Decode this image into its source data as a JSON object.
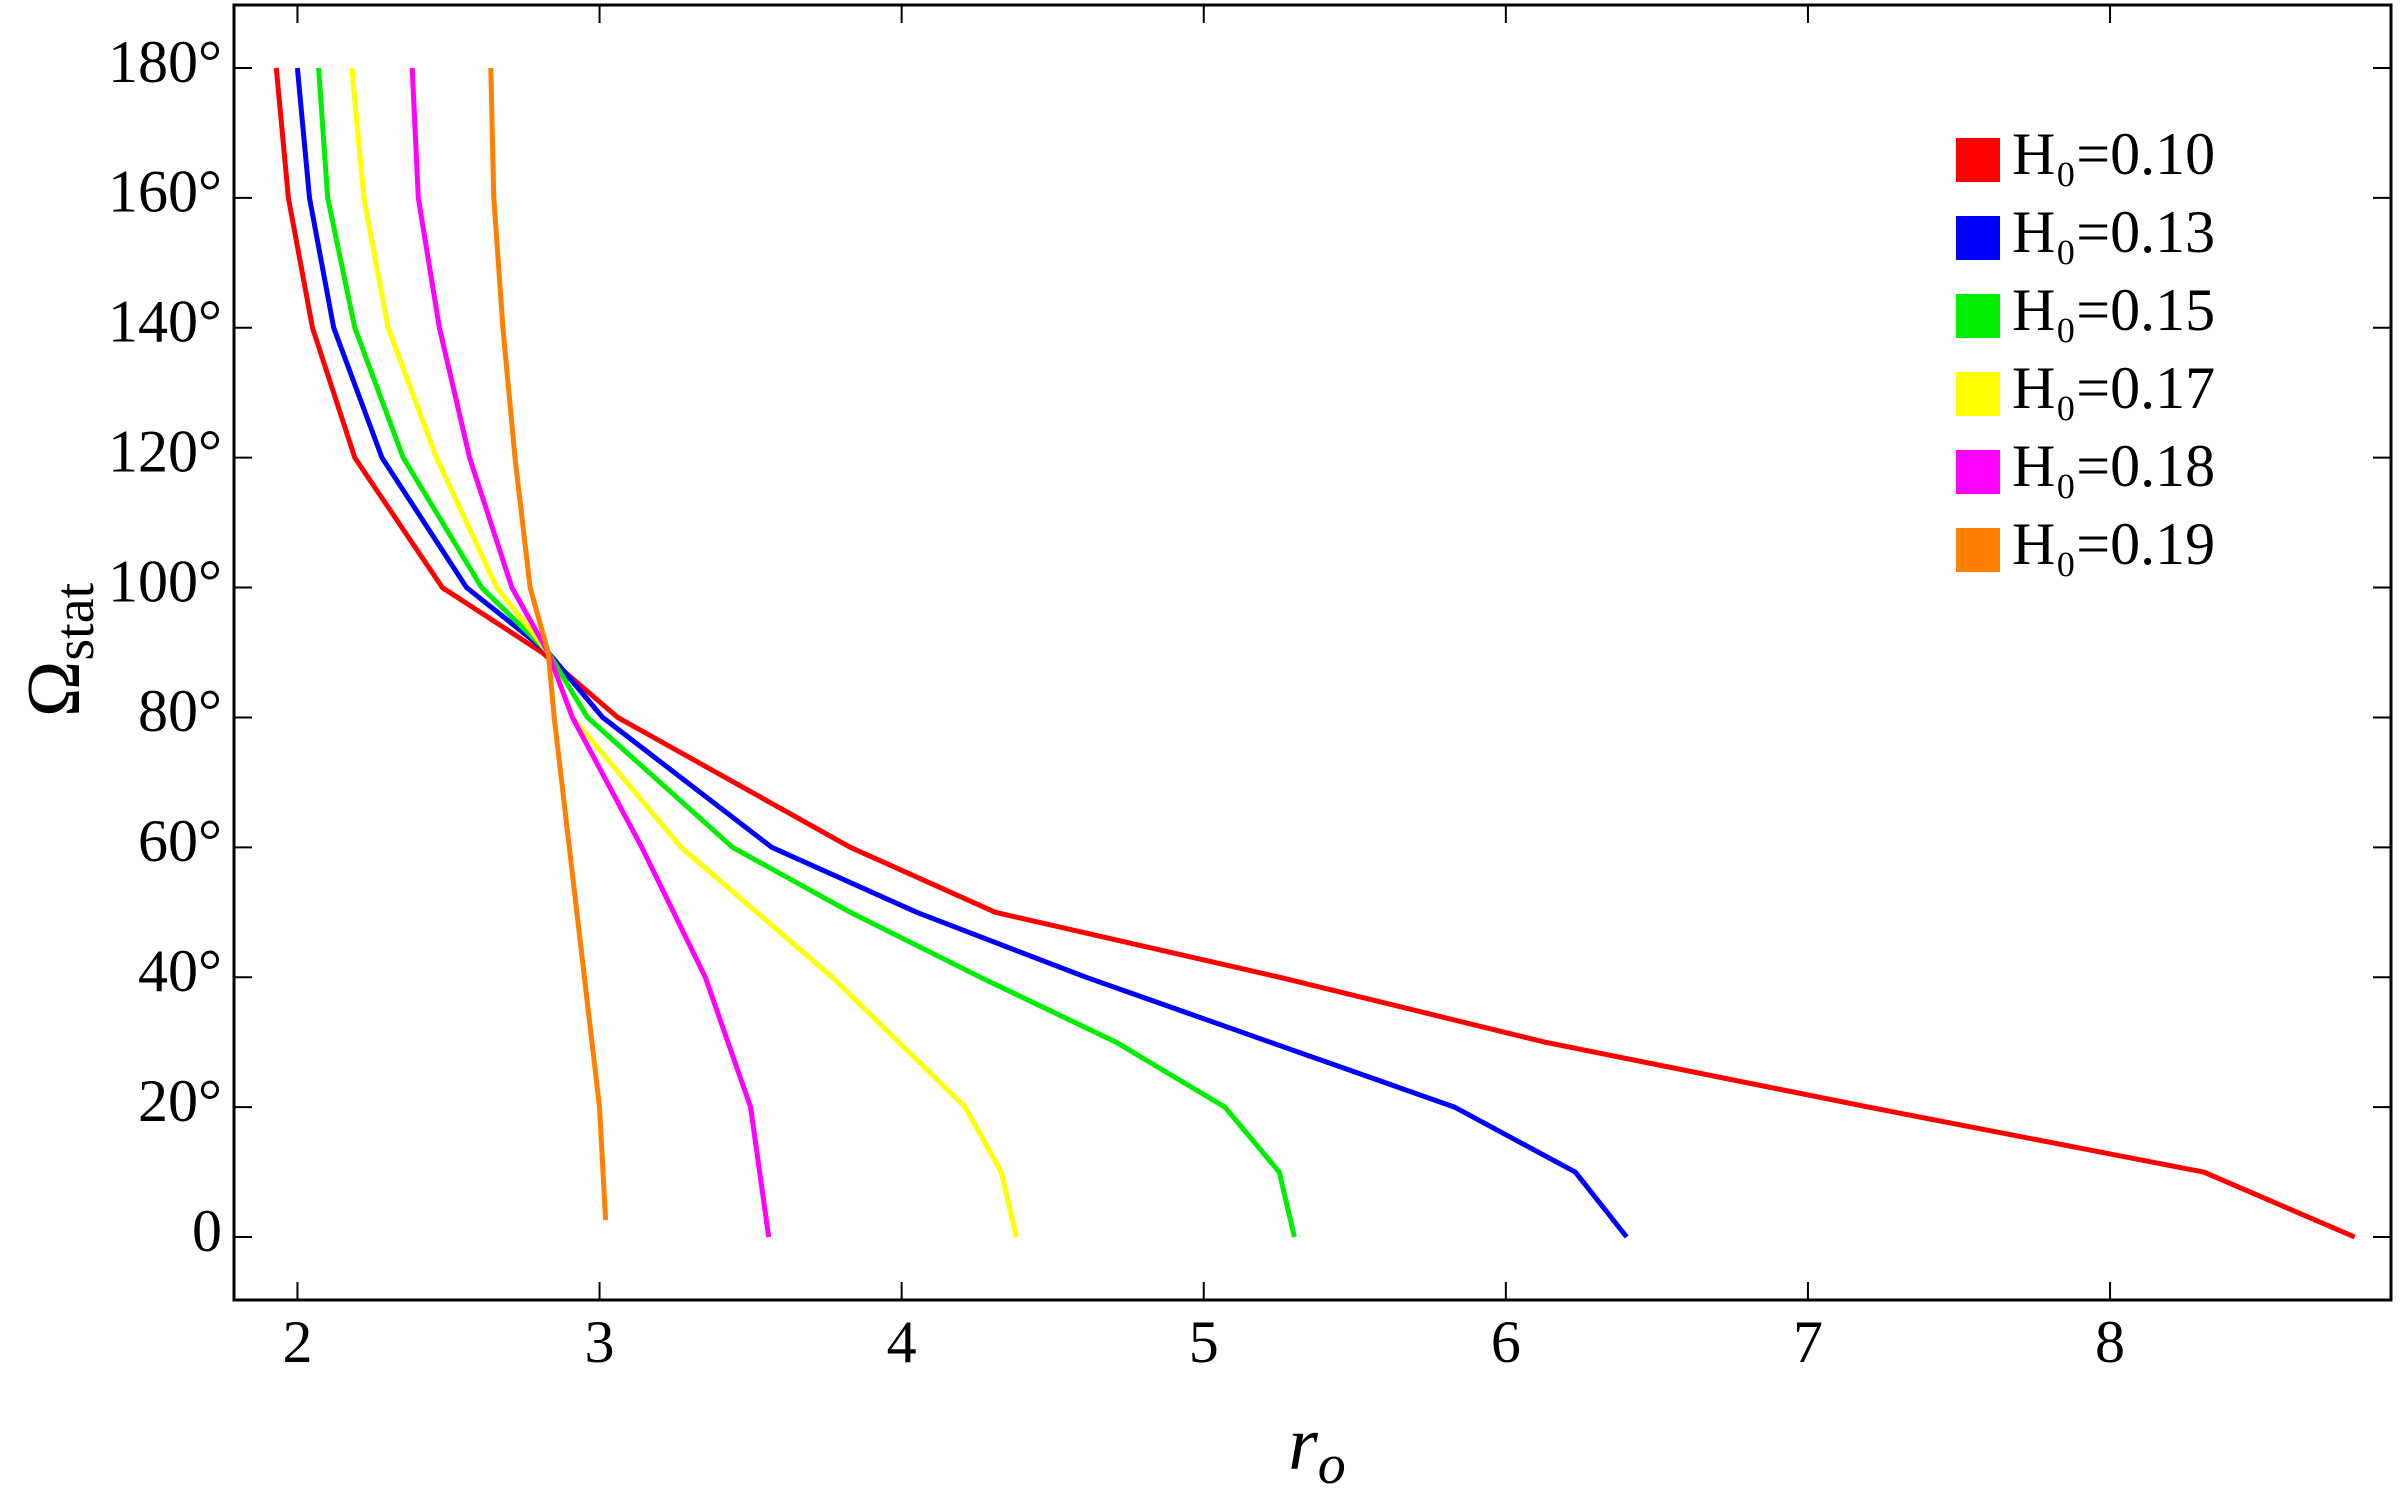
{
  "chart_data": {
    "type": "line",
    "x_label": {
      "base": "r",
      "sub": "o"
    },
    "y_label": {
      "base": "Ω",
      "sub": "stat"
    },
    "xlim": [
      1.79,
      8.93
    ],
    "ylim": [
      -9.7,
      189.7
    ],
    "xticks": [
      2,
      3,
      4,
      5,
      6,
      7,
      8
    ],
    "yticks": [
      0,
      {
        "value": 20,
        "label": "20°"
      },
      {
        "value": 40,
        "label": "40°"
      },
      {
        "value": 60,
        "label": "60°"
      },
      {
        "value": 80,
        "label": "80°"
      },
      {
        "value": 100,
        "label": "100°"
      },
      {
        "value": 120,
        "label": "120°"
      },
      {
        "value": 140,
        "label": "140°"
      },
      {
        "value": 160,
        "label": "160°"
      },
      {
        "value": 180,
        "label": "180°"
      }
    ],
    "legend": "upper right",
    "series": [
      {
        "name": "H₀=0.10",
        "color": "#ff0000",
        "x": [
          1.93,
          1.97,
          2.05,
          2.19,
          2.48,
          2.81,
          3.06,
          3.83,
          4.31,
          5.25,
          6.13,
          7.2,
          8.31,
          8.81
        ],
        "values": [
          180,
          160,
          140,
          120,
          100,
          90,
          80,
          60,
          50,
          40,
          30,
          20,
          10,
          0
        ]
      },
      {
        "name": "H₀=0.13",
        "color": "#0000ff",
        "x": [
          2.0,
          2.04,
          2.12,
          2.28,
          2.56,
          2.83,
          3.01,
          3.57,
          4.05,
          4.61,
          5.22,
          5.83,
          6.23,
          6.4
        ],
        "values": [
          180,
          160,
          140,
          120,
          100,
          90,
          80,
          60,
          50,
          40,
          30,
          20,
          10,
          0
        ]
      },
      {
        "name": "H₀=0.15",
        "color": "#00ee00",
        "x": [
          2.07,
          2.1,
          2.19,
          2.35,
          2.61,
          2.83,
          2.96,
          3.44,
          3.83,
          4.26,
          4.71,
          5.07,
          5.25,
          5.3
        ],
        "values": [
          180,
          160,
          140,
          120,
          100,
          90,
          80,
          60,
          50,
          40,
          30,
          20,
          10,
          0
        ]
      },
      {
        "name": "H₀=0.17",
        "color": "#ffff00",
        "x": [
          2.18,
          2.22,
          2.3,
          2.46,
          2.66,
          2.83,
          2.91,
          3.27,
          3.77,
          4.21,
          4.33,
          4.38
        ],
        "values": [
          180,
          160,
          140,
          120,
          100,
          90,
          80,
          60,
          40,
          20,
          10,
          0
        ]
      },
      {
        "name": "H₀=0.18",
        "color": "#ff00ff",
        "x": [
          2.38,
          2.4,
          2.47,
          2.57,
          2.71,
          2.83,
          2.91,
          3.14,
          3.35,
          3.5,
          3.56
        ],
        "values": [
          180,
          160,
          140,
          120,
          100,
          90,
          80,
          60,
          40,
          20,
          0
        ]
      },
      {
        "name": "H₀=0.19",
        "color": "#ff8000",
        "x": [
          2.64,
          2.65,
          2.68,
          2.72,
          2.77,
          2.83,
          2.85,
          2.9,
          2.95,
          3.0,
          3.02
        ],
        "values": [
          180,
          160,
          140,
          120,
          100,
          90,
          80,
          60,
          40,
          20,
          2.6
        ]
      }
    ]
  }
}
